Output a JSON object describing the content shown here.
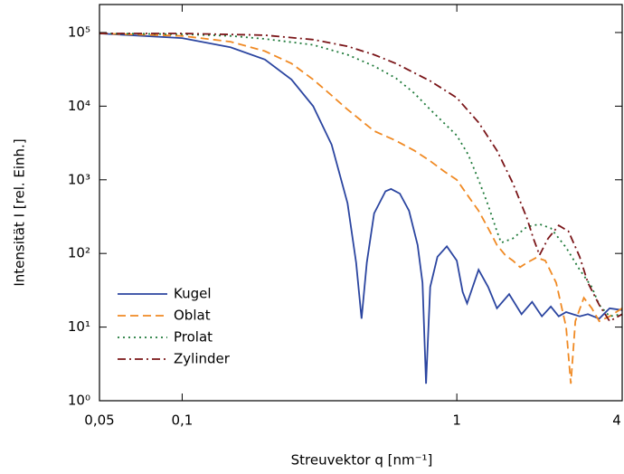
{
  "chart_data": {
    "type": "line",
    "xlabel": "Streuvektor q [nm⁻¹]",
    "ylabel": "Intensität I [rel. Einh.]",
    "xscale": "log",
    "yscale": "log",
    "xlim": [
      0.05,
      4
    ],
    "ylim": [
      1,
      240000
    ],
    "xticks": [
      {
        "value": 0.05,
        "label": "0,05"
      },
      {
        "value": 0.1,
        "label": "0,1"
      },
      1,
      4
    ],
    "yticks": [
      {
        "value": 1,
        "label": "10⁰"
      },
      {
        "value": 10,
        "label": "10¹"
      },
      {
        "value": 100,
        "label": "10²"
      },
      {
        "value": 1000,
        "label": "10³"
      },
      {
        "value": 10000,
        "label": "10⁴"
      },
      {
        "value": 100000,
        "label": "10⁵"
      }
    ],
    "legend": "lower left",
    "series": [
      {
        "name": "Kugel",
        "color": "#2b45a0",
        "dash": "solid",
        "x": [
          0.05,
          0.1,
          0.15,
          0.2,
          0.25,
          0.3,
          0.35,
          0.4,
          0.43,
          0.45,
          0.47,
          0.5,
          0.55,
          0.576,
          0.62,
          0.67,
          0.72,
          0.75,
          0.7725,
          0.8,
          0.85,
          0.92,
          1.0,
          1.05,
          1.09,
          1.2,
          1.3,
          1.4,
          1.55,
          1.72,
          1.88,
          2.04,
          2.2,
          2.35,
          2.5,
          2.8,
          3.0,
          3.3,
          3.6,
          4.0
        ],
        "values": [
          97000,
          84000,
          63000,
          43000,
          23000,
          10000,
          3000,
          480,
          75,
          13,
          75,
          350,
          700,
          750,
          650,
          380,
          130,
          40,
          1.7,
          35,
          90,
          125,
          80,
          30,
          21,
          60,
          35,
          18,
          28,
          15,
          22,
          14,
          19,
          14,
          16,
          14,
          15,
          13,
          18,
          17
        ]
      },
      {
        "name": "Oblat",
        "color": "#f08a24",
        "dash": "dashed",
        "x": [
          0.05,
          0.1,
          0.15,
          0.2,
          0.25,
          0.3,
          0.35,
          0.4,
          0.5,
          0.6,
          0.7,
          0.8,
          0.9,
          1.0,
          1.1,
          1.2,
          1.3,
          1.4,
          1.5,
          1.6,
          1.7,
          1.8,
          1.95,
          2.1,
          2.3,
          2.5,
          2.6,
          2.7,
          2.9,
          3.1,
          3.3,
          3.6,
          4.0
        ],
        "values": [
          97000,
          90000,
          75000,
          56000,
          38000,
          23000,
          14000,
          9000,
          4600,
          3400,
          2500,
          1800,
          1300,
          1000,
          600,
          380,
          220,
          130,
          95,
          80,
          65,
          75,
          88,
          80,
          40,
          10,
          1.7,
          12,
          25,
          18,
          12,
          14,
          18
        ]
      },
      {
        "name": "Prolat",
        "color": "#1f7a3a",
        "dash": "dotted",
        "x": [
          0.05,
          0.1,
          0.15,
          0.2,
          0.3,
          0.4,
          0.5,
          0.6,
          0.7,
          0.8,
          1.0,
          1.1,
          1.2,
          1.3,
          1.4,
          1.45,
          1.6,
          1.8,
          2.0,
          2.2,
          2.5,
          2.8,
          3.1,
          3.3,
          3.6,
          4.0
        ],
        "values": [
          97000,
          95000,
          90000,
          82000,
          68000,
          50000,
          35000,
          24000,
          15000,
          9000,
          4000,
          2200,
          1000,
          450,
          200,
          140,
          160,
          230,
          250,
          220,
          120,
          60,
          35,
          20,
          14,
          15
        ]
      },
      {
        "name": "Zylinder",
        "color": "#7a1518",
        "dash": "dashdot",
        "x": [
          0.05,
          0.1,
          0.2,
          0.3,
          0.4,
          0.5,
          0.6,
          0.8,
          1.0,
          1.2,
          1.4,
          1.6,
          1.8,
          1.9,
          2.0,
          2.15,
          2.35,
          2.55,
          2.8,
          3.0,
          3.3,
          3.6,
          4.0
        ],
        "values": [
          97000,
          97000,
          92000,
          80000,
          65000,
          50000,
          38000,
          22000,
          13000,
          6000,
          2500,
          900,
          300,
          160,
          95,
          160,
          240,
          200,
          90,
          40,
          20,
          12,
          15
        ]
      }
    ]
  }
}
